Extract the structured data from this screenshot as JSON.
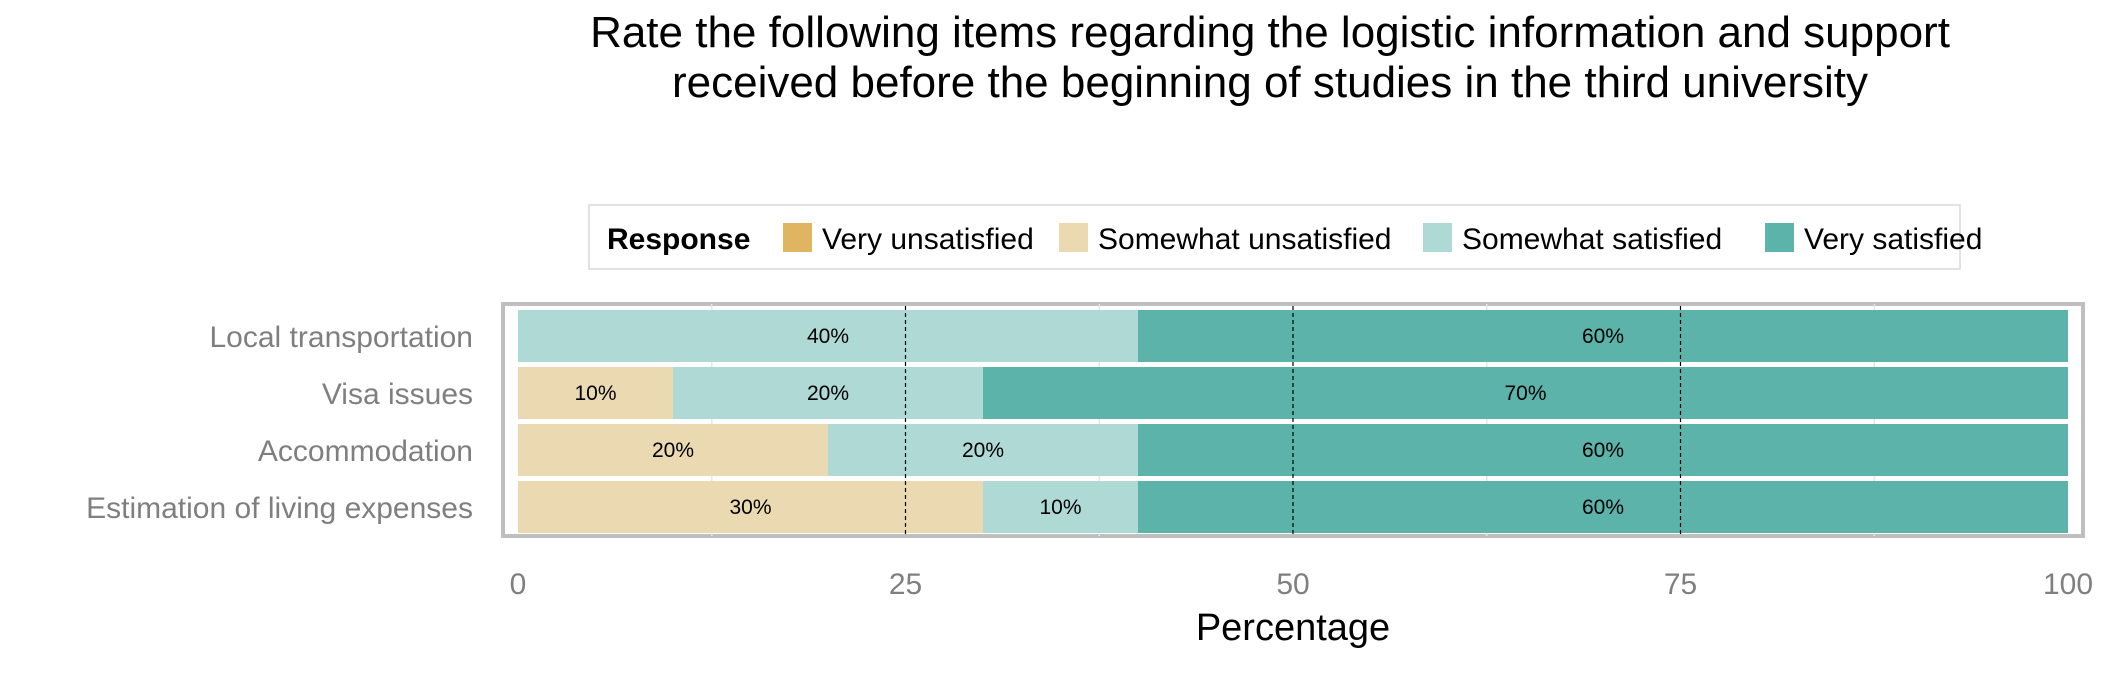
{
  "chart_data": {
    "type": "bar",
    "orientation": "horizontal",
    "stacked": true,
    "title": "Rate the following items regarding the logistic information and support received before the beginning of studies in the third university",
    "xlabel": "Percentage",
    "ylabel": "",
    "xlim": [
      0,
      100
    ],
    "xticks": [
      "0",
      "25",
      "50",
      "75",
      "100"
    ],
    "grid": true,
    "legend": {
      "title": "Response",
      "position": "top",
      "entries": [
        "Very unsatisfied",
        "Somewhat unsatisfied",
        "Somewhat satisfied",
        "Very satisfied"
      ]
    },
    "categories": [
      "Local transportation",
      "Visa issues",
      "Accommodation",
      "Estimation of living expenses"
    ],
    "series": [
      {
        "name": "Very unsatisfied",
        "color": "#dfb562",
        "values": [
          0,
          0,
          0,
          0
        ]
      },
      {
        "name": "Somewhat unsatisfied",
        "color": "#ebd9b2",
        "values": [
          0,
          10,
          20,
          30
        ]
      },
      {
        "name": "Somewhat satisfied",
        "color": "#aed9d5",
        "values": [
          40,
          20,
          20,
          10
        ]
      },
      {
        "name": "Very satisfied",
        "color": "#5bb3aa",
        "values": [
          60,
          70,
          60,
          60
        ]
      }
    ],
    "data_label_suffix": "%"
  }
}
